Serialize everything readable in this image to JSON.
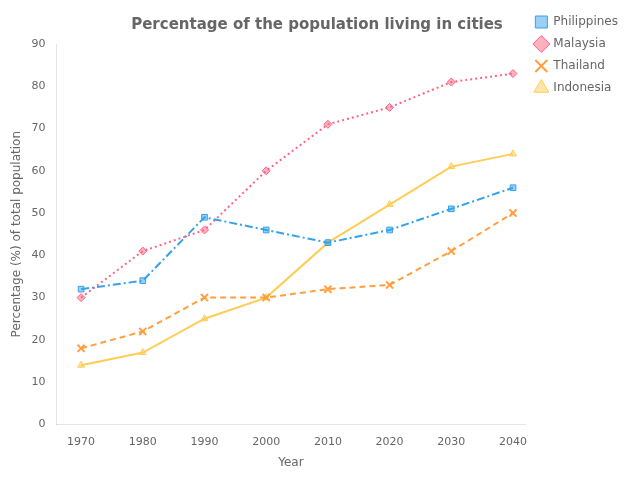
{
  "chart_data": {
    "type": "line",
    "title": "Percentage of the population living in cities",
    "x_label": "Year",
    "y_label": "Percentage (%) of total population",
    "x": [
      1970,
      1980,
      1990,
      2000,
      2010,
      2020,
      2030,
      2040
    ],
    "series": [
      {
        "name": "Philippines",
        "values": [
          32,
          34,
          49,
          46,
          43,
          46,
          51,
          56
        ],
        "marker": "square",
        "line_style": "dashdot"
      },
      {
        "name": "Malaysia",
        "values": [
          30,
          41,
          46,
          60,
          71,
          75,
          81,
          83
        ],
        "marker": "diamond",
        "line_style": "dotted"
      },
      {
        "name": "Thailand",
        "values": [
          18,
          22,
          30,
          30,
          32,
          33,
          41,
          50
        ],
        "marker": "x",
        "line_style": "dashed"
      },
      {
        "name": "Indonesia",
        "values": [
          14,
          17,
          25,
          30,
          43,
          52,
          61,
          64
        ],
        "marker": "triangle",
        "line_style": "solid"
      }
    ],
    "xlim": [
      1966,
      2042
    ],
    "xticks": [
      1970,
      1980,
      1990,
      2000,
      2010,
      2020,
      2030,
      2040
    ],
    "ylim": [
      0,
      90
    ],
    "yticks": [
      0,
      10,
      20,
      30,
      40,
      50,
      60,
      70,
      80,
      90
    ],
    "grid": false,
    "legend": "right"
  }
}
